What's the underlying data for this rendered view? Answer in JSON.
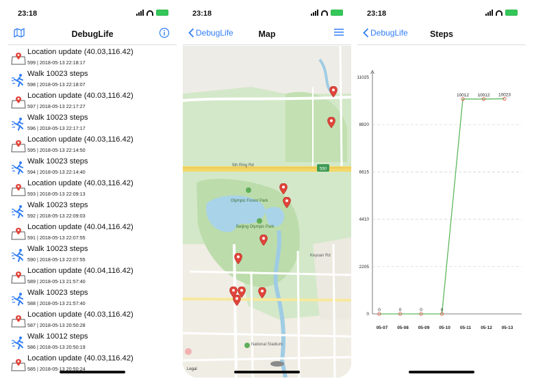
{
  "status": {
    "time": "23:18"
  },
  "screen1": {
    "title": "DebugLife",
    "rows": [
      {
        "kind": "location",
        "title": "Location update (40.03,116.42)",
        "sub": "599 | 2018-05-13 22:18:17"
      },
      {
        "kind": "steps",
        "title": "Walk 10023 steps",
        "sub": "598 | 2018-05-13 22:18:07"
      },
      {
        "kind": "location",
        "title": "Location update (40.03,116.42)",
        "sub": "597 | 2018-05-13 22:17:27"
      },
      {
        "kind": "steps",
        "title": "Walk 10023 steps",
        "sub": "596 | 2018-05-13 22:17:17"
      },
      {
        "kind": "location",
        "title": "Location update (40.03,116.42)",
        "sub": "595 | 2018-05-13 22:14:50"
      },
      {
        "kind": "steps",
        "title": "Walk 10023 steps",
        "sub": "594 | 2018-05-13 22:14:40"
      },
      {
        "kind": "location",
        "title": "Location update (40.03,116.42)",
        "sub": "593 | 2018-05-13 22:09:13"
      },
      {
        "kind": "steps",
        "title": "Walk 10023 steps",
        "sub": "592 | 2018-05-13 22:09:03"
      },
      {
        "kind": "location",
        "title": "Location update (40.04,116.42)",
        "sub": "591 | 2018-05-13 22:07:55"
      },
      {
        "kind": "steps",
        "title": "Walk 10023 steps",
        "sub": "590 | 2018-05-13 22:07:55"
      },
      {
        "kind": "location",
        "title": "Location update (40.04,116.42)",
        "sub": "589 | 2018-05-13 21:57:40"
      },
      {
        "kind": "steps",
        "title": "Walk 10023 steps",
        "sub": "588 | 2018-05-13 21:57:40"
      },
      {
        "kind": "location",
        "title": "Location update (40.03,116.42)",
        "sub": "587 | 2018-05-13 20:50:28"
      },
      {
        "kind": "steps",
        "title": "Walk 10012 steps",
        "sub": "586 | 2018-05-13 20:50:19"
      },
      {
        "kind": "location",
        "title": "Location update (40.03,116.42)",
        "sub": "585 | 2018-05-13 20:50:24"
      }
    ]
  },
  "screen2": {
    "back": "DebugLife",
    "title": "Map",
    "labels": {
      "ring": "5th Ring Rd",
      "park": "Olympic Forest Park",
      "park2": "Beijing Olympic Park",
      "street": "Keyuan Rd",
      "sports": "National Stadium",
      "legal": "Legal",
      "route": "550"
    }
  },
  "screen3": {
    "back": "DebugLife",
    "title": "Steps"
  },
  "chart_data": {
    "type": "line",
    "categories": [
      "05-07",
      "05-08",
      "05-09",
      "05-10",
      "05-11",
      "05-12",
      "05-13"
    ],
    "values": [
      0,
      0,
      0,
      0,
      10012,
      10012,
      10023
    ],
    "value_labels": [
      "0",
      "0",
      "0",
      "0",
      "10012",
      "10012",
      "10023"
    ],
    "yticks": [
      "0",
      "2205",
      "4410",
      "6615",
      "8820",
      "11025"
    ],
    "ylim": [
      0,
      11025
    ],
    "grid": true,
    "line_color": "#5cb85c",
    "marker_color": "#e05a4f"
  }
}
